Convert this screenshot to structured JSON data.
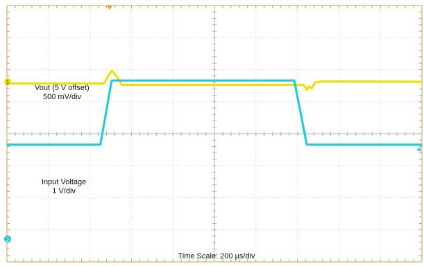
{
  "chart_data": {
    "type": "line",
    "title": "",
    "xlabel": "",
    "ylabel": "",
    "grid": true,
    "divisions": {
      "x": 10,
      "y": 8
    },
    "time_scale": {
      "label": "Time Scale: 200 µs/div",
      "per_div_us": 200
    },
    "series": [
      {
        "channel": "1",
        "color": "#e8de00",
        "label_lines": [
          "Vout  (5 V offset)",
          "500 mV/div"
        ],
        "volts_per_div": 0.5,
        "offset_v": 5,
        "x_div": [
          0,
          4.7,
          4.85,
          5.05,
          5.3,
          5.55,
          14.1,
          14.3,
          14.45,
          14.55,
          14.7,
          14.85,
          15.2,
          20
        ],
        "y_div": [
          -0.12,
          -0.12,
          0.35,
          0.75,
          0.35,
          -0.22,
          -0.22,
          -0.22,
          -0.55,
          -0.32,
          -0.45,
          -0.05,
          0.02,
          0
        ]
      },
      {
        "channel": "2",
        "color": "#1cc6d6",
        "label_lines": [
          "Input Voltage",
          "1 V/div"
        ],
        "volts_per_div": 1,
        "x_div": [
          0,
          4.5,
          5.05,
          13.85,
          14.45,
          20
        ],
        "y_div": [
          3.32,
          3.32,
          5.58,
          5.58,
          3.32,
          3.32
        ]
      }
    ],
    "channel_markers": [
      {
        "label": "1",
        "color": "#e8de00"
      },
      {
        "label": "2",
        "color": "#1cc6d6"
      }
    ]
  }
}
